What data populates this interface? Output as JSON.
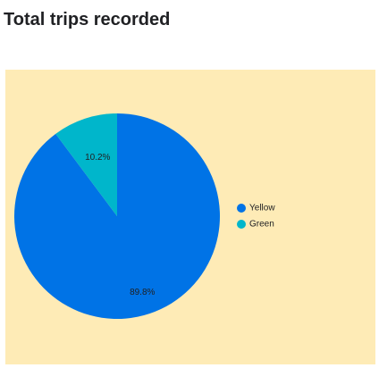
{
  "page": {
    "title": "Total trips recorded"
  },
  "colors": {
    "panel_background": "#feebb6",
    "Yellow": "#0073e6",
    "Green": "#00b6cb"
  },
  "chart_data": {
    "type": "pie",
    "title": "",
    "legend_position": "right",
    "slices": [
      {
        "name": "Yellow",
        "value": 89.8,
        "label": "89.8%"
      },
      {
        "name": "Green",
        "value": 10.2,
        "label": "10.2%"
      }
    ]
  }
}
